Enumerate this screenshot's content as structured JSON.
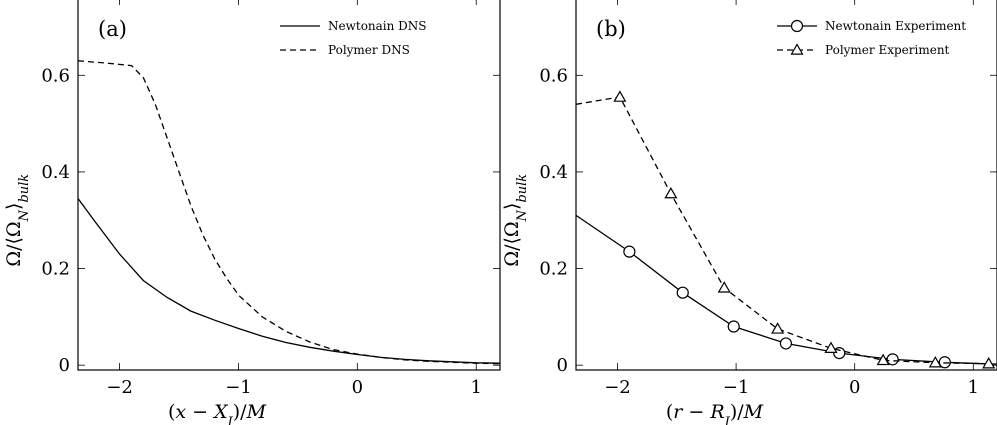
{
  "chart_data": [
    {
      "type": "line",
      "panel_label": "(a)",
      "xlabel": "(x − X_I)/M",
      "ylabel": "Ω/⟨Ω_N⟩_bulk",
      "xlim": [
        -2.35,
        1.2
      ],
      "ylim": [
        -0.01,
        0.76
      ],
      "xticks": [
        -2,
        -1,
        0,
        1
      ],
      "xtick_labels": [
        "−2",
        "−1",
        "0",
        "1"
      ],
      "yticks": [
        0,
        0.2,
        0.4,
        0.6
      ],
      "ytick_labels": [
        "0",
        "0.2",
        "0.4",
        "0.6"
      ],
      "legend_position": "top-right",
      "series": [
        {
          "name": "Newtonain DNS",
          "style": "solid",
          "x": [
            -2.35,
            -2.2,
            -2.0,
            -1.8,
            -1.6,
            -1.4,
            -1.2,
            -1.0,
            -0.8,
            -0.6,
            -0.4,
            -0.2,
            0.0,
            0.2,
            0.4,
            0.6,
            0.8,
            1.0,
            1.2
          ],
          "y": [
            0.345,
            0.295,
            0.23,
            0.175,
            0.14,
            0.112,
            0.093,
            0.076,
            0.06,
            0.047,
            0.037,
            0.029,
            0.022,
            0.016,
            0.012,
            0.009,
            0.007,
            0.005,
            0.004
          ]
        },
        {
          "name": "Polymer DNS",
          "style": "dashed",
          "x": [
            -2.35,
            -2.1,
            -1.9,
            -1.8,
            -1.7,
            -1.6,
            -1.5,
            -1.4,
            -1.3,
            -1.2,
            -1.1,
            -1.0,
            -0.8,
            -0.6,
            -0.4,
            -0.2,
            0.0,
            0.2,
            0.4,
            0.6,
            0.8,
            1.0,
            1.2
          ],
          "y": [
            0.63,
            0.625,
            0.62,
            0.595,
            0.54,
            0.47,
            0.4,
            0.33,
            0.27,
            0.22,
            0.18,
            0.145,
            0.1,
            0.07,
            0.048,
            0.032,
            0.023,
            0.016,
            0.011,
            0.008,
            0.006,
            0.004,
            0.003
          ]
        }
      ]
    },
    {
      "type": "line",
      "panel_label": "(b)",
      "xlabel": "(r − R_I)/M",
      "ylabel": "Ω/⟨Ω_N⟩_bulk",
      "xlim": [
        -2.35,
        1.2
      ],
      "ylim": [
        -0.01,
        0.76
      ],
      "xticks": [
        -2,
        -1,
        0,
        1
      ],
      "xtick_labels": [
        "−2",
        "−1",
        "0",
        "1"
      ],
      "yticks": [
        0,
        0.2,
        0.4,
        0.6
      ],
      "ytick_labels": [
        "0",
        "0.2",
        "0.4",
        "0.6"
      ],
      "legend_position": "top-right",
      "series": [
        {
          "name": "Newtonain Experiment",
          "style": "solid",
          "marker": "circle",
          "x": [
            -2.35,
            -1.9,
            -1.45,
            -1.02,
            -0.58,
            -0.13,
            0.32,
            0.76,
            1.2
          ],
          "y": [
            0.31,
            0.235,
            0.15,
            0.08,
            0.045,
            0.025,
            0.012,
            0.006,
            0.002
          ],
          "marker_indices": [
            1,
            2,
            3,
            4,
            5,
            6,
            7
          ]
        },
        {
          "name": "Polymer Experiment",
          "style": "dashed",
          "marker": "triangle",
          "x": [
            -2.35,
            -1.98,
            -1.55,
            -1.1,
            -0.65,
            -0.2,
            0.24,
            0.68,
            1.13
          ],
          "y": [
            0.54,
            0.555,
            0.355,
            0.16,
            0.075,
            0.035,
            0.01,
            0.005,
            0.003
          ],
          "marker_indices": [
            1,
            2,
            3,
            4,
            5,
            6,
            7,
            8
          ]
        }
      ]
    }
  ]
}
